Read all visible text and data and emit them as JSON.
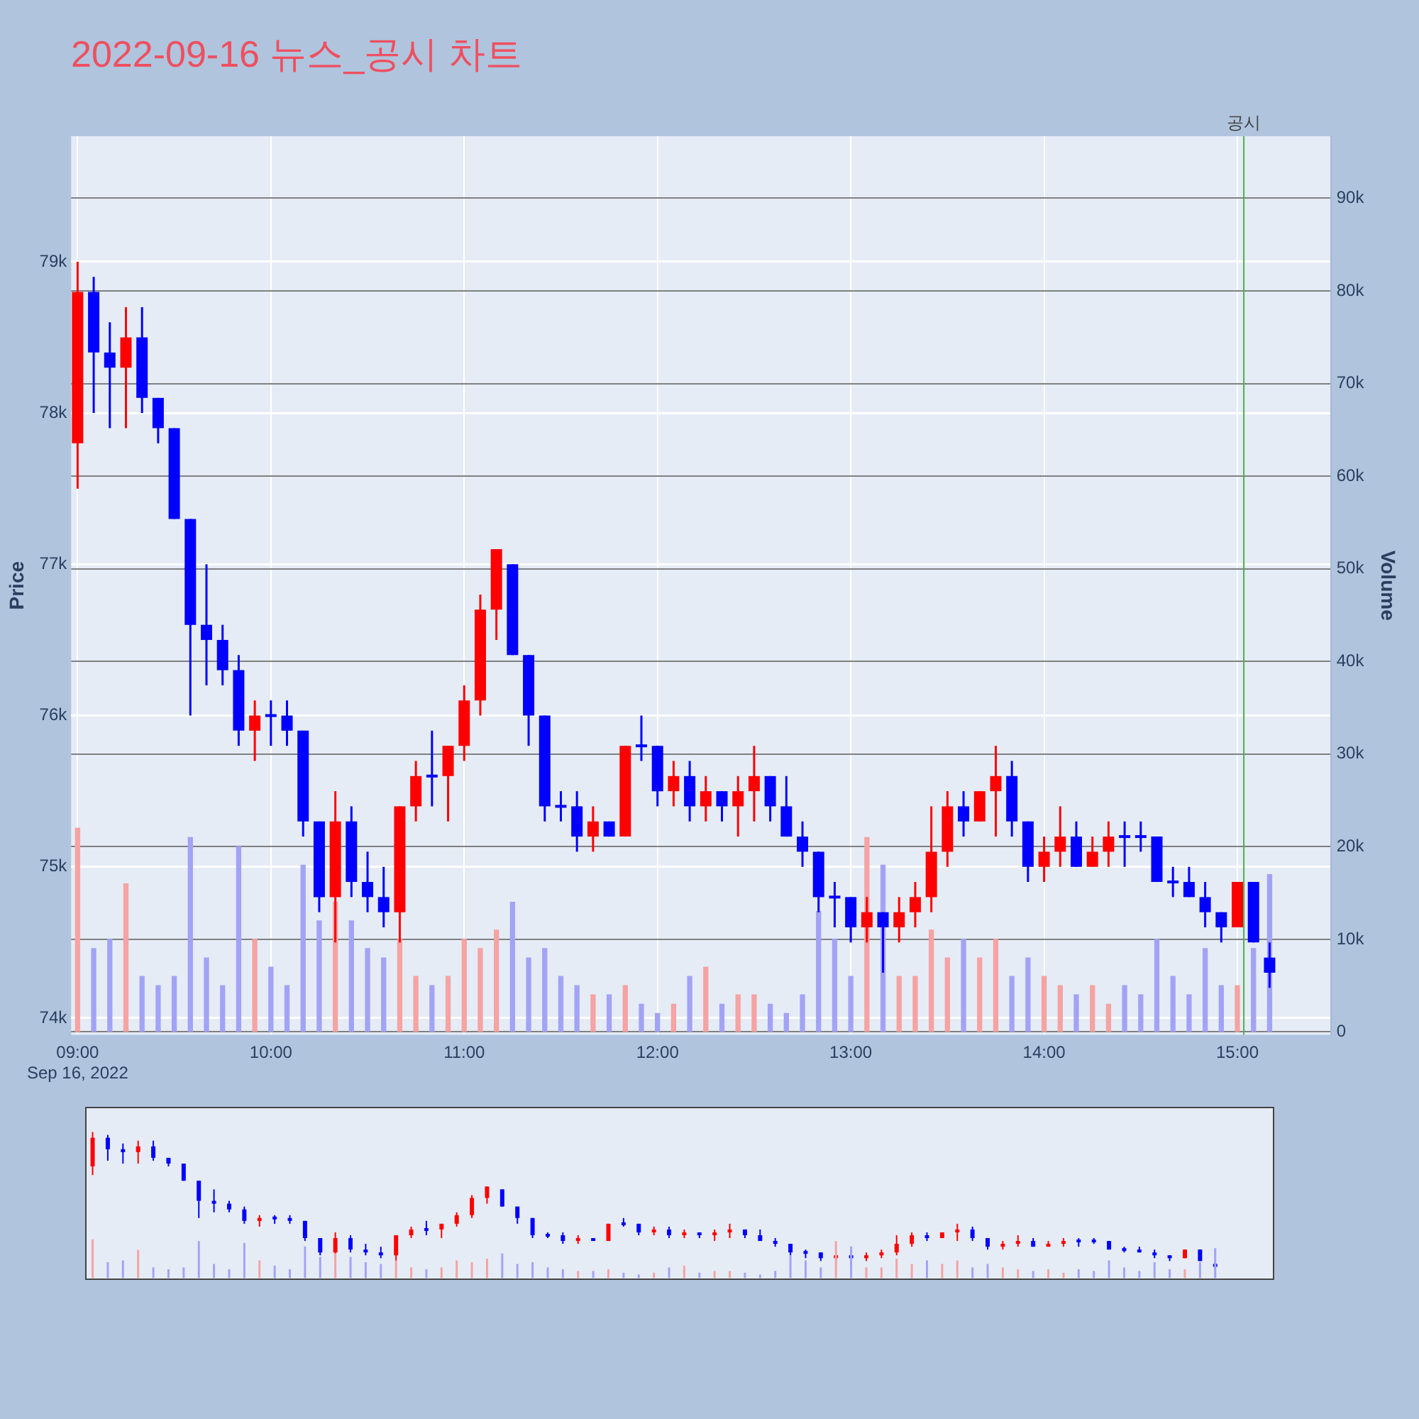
{
  "chart_data": {
    "type": "candlestick",
    "title": "2022-09-16 뉴스_공시 차트",
    "ylabel": "Price",
    "y2label": "Volume",
    "grid": true,
    "x": [
      "2022-09-16T09:00",
      "2022-09-16T09:05",
      "2022-09-16T09:10",
      "2022-09-16T09:15",
      "2022-09-16T09:20",
      "2022-09-16T09:25",
      "2022-09-16T09:30",
      "2022-09-16T09:35",
      "2022-09-16T09:40",
      "2022-09-16T09:45",
      "2022-09-16T09:50",
      "2022-09-16T09:55",
      "2022-09-16T10:00",
      "2022-09-16T10:05",
      "2022-09-16T10:10",
      "2022-09-16T10:15",
      "2022-09-16T10:20",
      "2022-09-16T10:25",
      "2022-09-16T10:30",
      "2022-09-16T10:35",
      "2022-09-16T10:40",
      "2022-09-16T10:45",
      "2022-09-16T10:50",
      "2022-09-16T10:55",
      "2022-09-16T11:00",
      "2022-09-16T11:05",
      "2022-09-16T11:10",
      "2022-09-16T11:15",
      "2022-09-16T11:20",
      "2022-09-16T11:25",
      "2022-09-16T11:30",
      "2022-09-16T11:35",
      "2022-09-16T11:40",
      "2022-09-16T11:45",
      "2022-09-16T11:50",
      "2022-09-16T11:55",
      "2022-09-16T12:00",
      "2022-09-16T12:05",
      "2022-09-16T12:10",
      "2022-09-16T12:15",
      "2022-09-16T12:20",
      "2022-09-16T12:25",
      "2022-09-16T12:30",
      "2022-09-16T12:35",
      "2022-09-16T12:40",
      "2022-09-16T12:45",
      "2022-09-16T12:50",
      "2022-09-16T12:55",
      "2022-09-16T13:00",
      "2022-09-16T13:05",
      "2022-09-16T13:10",
      "2022-09-16T13:15",
      "2022-09-16T13:20",
      "2022-09-16T13:25",
      "2022-09-16T13:30",
      "2022-09-16T13:35",
      "2022-09-16T13:40",
      "2022-09-16T13:45",
      "2022-09-16T13:50",
      "2022-09-16T13:55",
      "2022-09-16T14:00",
      "2022-09-16T14:05",
      "2022-09-16T14:10",
      "2022-09-16T14:15",
      "2022-09-16T14:20",
      "2022-09-16T14:25",
      "2022-09-16T14:30",
      "2022-09-16T14:35",
      "2022-09-16T14:40",
      "2022-09-16T14:45",
      "2022-09-16T14:50",
      "2022-09-16T14:55",
      "2022-09-16T15:00",
      "2022-09-16T15:05",
      "2022-09-16T15:10"
    ],
    "series": [
      {
        "type": "candlestick",
        "ohlc": [
          [
            77800,
            79000,
            77500,
            78800
          ],
          [
            78800,
            78900,
            78000,
            78400
          ],
          [
            78400,
            78600,
            77900,
            78300
          ],
          [
            78300,
            78700,
            77900,
            78500
          ],
          [
            78500,
            78700,
            78000,
            78100
          ],
          [
            78100,
            78100,
            77800,
            77900
          ],
          [
            77900,
            77900,
            77300,
            77300
          ],
          [
            77300,
            77300,
            76000,
            76600
          ],
          [
            76600,
            77000,
            76200,
            76500
          ],
          [
            76500,
            76600,
            76200,
            76300
          ],
          [
            76300,
            76400,
            75800,
            75900
          ],
          [
            75900,
            76100,
            75700,
            76000
          ],
          [
            76000,
            76100,
            75800,
            76000
          ],
          [
            76000,
            76100,
            75800,
            75900
          ],
          [
            75900,
            75900,
            75200,
            75300
          ],
          [
            75300,
            75300,
            74700,
            74800
          ],
          [
            74800,
            75500,
            74500,
            75300
          ],
          [
            75300,
            75400,
            74800,
            74900
          ],
          [
            74900,
            75100,
            74700,
            74800
          ],
          [
            74800,
            75000,
            74600,
            74700
          ],
          [
            74700,
            75400,
            74500,
            75400
          ],
          [
            75400,
            75700,
            75300,
            75600
          ],
          [
            75600,
            75900,
            75400,
            75600
          ],
          [
            75600,
            75800,
            75300,
            75800
          ],
          [
            75800,
            76200,
            75700,
            76100
          ],
          [
            76100,
            76800,
            76000,
            76700
          ],
          [
            76700,
            77100,
            76500,
            77100
          ],
          [
            77000,
            77000,
            76400,
            76400
          ],
          [
            76400,
            76400,
            75800,
            76000
          ],
          [
            76000,
            76000,
            75300,
            75400
          ],
          [
            75400,
            75500,
            75300,
            75400
          ],
          [
            75400,
            75500,
            75100,
            75200
          ],
          [
            75200,
            75400,
            75100,
            75300
          ],
          [
            75300,
            75300,
            75200,
            75200
          ],
          [
            75200,
            75800,
            75200,
            75800
          ],
          [
            75800,
            76000,
            75700,
            75800
          ],
          [
            75800,
            75800,
            75400,
            75500
          ],
          [
            75500,
            75700,
            75400,
            75600
          ],
          [
            75600,
            75700,
            75300,
            75400
          ],
          [
            75400,
            75600,
            75300,
            75500
          ],
          [
            75500,
            75500,
            75300,
            75400
          ],
          [
            75400,
            75600,
            75200,
            75500
          ],
          [
            75500,
            75800,
            75300,
            75600
          ],
          [
            75600,
            75600,
            75300,
            75400
          ],
          [
            75400,
            75600,
            75200,
            75200
          ],
          [
            75200,
            75300,
            75000,
            75100
          ],
          [
            75100,
            75100,
            74700,
            74800
          ],
          [
            74800,
            74900,
            74600,
            74800
          ],
          [
            74800,
            74800,
            74500,
            74600
          ],
          [
            74600,
            74800,
            74500,
            74700
          ],
          [
            74700,
            74700,
            74300,
            74600
          ],
          [
            74600,
            74800,
            74500,
            74700
          ],
          [
            74700,
            74900,
            74600,
            74800
          ],
          [
            74800,
            75400,
            74700,
            75100
          ],
          [
            75100,
            75500,
            75000,
            75400
          ],
          [
            75400,
            75500,
            75200,
            75300
          ],
          [
            75300,
            75500,
            75300,
            75500
          ],
          [
            75500,
            75800,
            75200,
            75600
          ],
          [
            75600,
            75700,
            75200,
            75300
          ],
          [
            75300,
            75300,
            74900,
            75000
          ],
          [
            75000,
            75200,
            74900,
            75100
          ],
          [
            75100,
            75400,
            75000,
            75200
          ],
          [
            75200,
            75300,
            75000,
            75000
          ],
          [
            75000,
            75200,
            75000,
            75100
          ],
          [
            75100,
            75300,
            75000,
            75200
          ],
          [
            75200,
            75300,
            75000,
            75200
          ],
          [
            75200,
            75300,
            75100,
            75200
          ],
          [
            75200,
            75200,
            74900,
            74900
          ],
          [
            74900,
            75000,
            74800,
            74900
          ],
          [
            74900,
            75000,
            74800,
            74800
          ],
          [
            74800,
            74900,
            74600,
            74700
          ],
          [
            74700,
            74700,
            74500,
            74600
          ],
          [
            74600,
            74900,
            74600,
            74900
          ],
          [
            74900,
            74900,
            74500,
            74500
          ],
          [
            74400,
            74500,
            74200,
            74300
          ]
        ],
        "colors": [
          "#ff0000",
          "#0000ff",
          "#0000ff",
          "#ff0000",
          "#0000ff",
          "#0000ff",
          "#0000ff",
          "#0000ff",
          "#0000ff",
          "#0000ff",
          "#0000ff",
          "#ff0000",
          "#0000ff",
          "#0000ff",
          "#0000ff",
          "#0000ff",
          "#ff0000",
          "#0000ff",
          "#0000ff",
          "#0000ff",
          "#ff0000",
          "#ff0000",
          "#0000ff",
          "#ff0000",
          "#ff0000",
          "#ff0000",
          "#ff0000",
          "#0000ff",
          "#0000ff",
          "#0000ff",
          "#0000ff",
          "#0000ff",
          "#ff0000",
          "#0000ff",
          "#ff0000",
          "#0000ff",
          "#0000ff",
          "#ff0000",
          "#0000ff",
          "#ff0000",
          "#0000ff",
          "#ff0000",
          "#ff0000",
          "#0000ff",
          "#0000ff",
          "#0000ff",
          "#0000ff",
          "#0000ff",
          "#0000ff",
          "#ff0000",
          "#0000ff",
          "#ff0000",
          "#ff0000",
          "#ff0000",
          "#ff0000",
          "#0000ff",
          "#ff0000",
          "#ff0000",
          "#0000ff",
          "#0000ff",
          "#ff0000",
          "#ff0000",
          "#0000ff",
          "#ff0000",
          "#ff0000",
          "#0000ff",
          "#0000ff",
          "#0000ff",
          "#0000ff",
          "#0000ff",
          "#0000ff",
          "#0000ff",
          "#ff0000",
          "#0000ff",
          "#0000ff"
        ]
      },
      {
        "type": "bar",
        "axis": "y2",
        "values": [
          22000,
          9000,
          10000,
          16000,
          6000,
          5000,
          6000,
          21000,
          8000,
          5000,
          20000,
          10000,
          7000,
          5000,
          18000,
          12000,
          14000,
          12000,
          9000,
          8000,
          10000,
          6000,
          5000,
          6000,
          10000,
          9000,
          11000,
          14000,
          8000,
          9000,
          6000,
          5000,
          4000,
          4000,
          5000,
          3000,
          2000,
          3000,
          6000,
          7000,
          3000,
          4000,
          4000,
          3000,
          2000,
          4000,
          13000,
          10000,
          6000,
          21000,
          18000,
          6000,
          6000,
          11000,
          8000,
          10000,
          8000,
          10000,
          6000,
          8000,
          6000,
          5000,
          4000,
          5000,
          3000,
          5000,
          4000,
          10000,
          6000,
          4000,
          9000,
          5000,
          5000,
          9000,
          17000
        ],
        "colors": [
          "#f5a3a3",
          "#a3a3f5",
          "#a3a3f5",
          "#f5a3a3",
          "#a3a3f5",
          "#a3a3f5",
          "#a3a3f5",
          "#a3a3f5",
          "#a3a3f5",
          "#a3a3f5",
          "#a3a3f5",
          "#f5a3a3",
          "#a3a3f5",
          "#a3a3f5",
          "#a3a3f5",
          "#a3a3f5",
          "#f5a3a3",
          "#a3a3f5",
          "#a3a3f5",
          "#a3a3f5",
          "#f5a3a3",
          "#f5a3a3",
          "#a3a3f5",
          "#f5a3a3",
          "#f5a3a3",
          "#f5a3a3",
          "#f5a3a3",
          "#a3a3f5",
          "#a3a3f5",
          "#a3a3f5",
          "#a3a3f5",
          "#a3a3f5",
          "#f5a3a3",
          "#a3a3f5",
          "#f5a3a3",
          "#a3a3f5",
          "#a3a3f5",
          "#f5a3a3",
          "#a3a3f5",
          "#f5a3a3",
          "#a3a3f5",
          "#f5a3a3",
          "#f5a3a3",
          "#a3a3f5",
          "#a3a3f5",
          "#a3a3f5",
          "#a3a3f5",
          "#a3a3f5",
          "#a3a3f5",
          "#f5a3a3",
          "#a3a3f5",
          "#f5a3a3",
          "#f5a3a3",
          "#f5a3a3",
          "#f5a3a3",
          "#a3a3f5",
          "#f5a3a3",
          "#f5a3a3",
          "#a3a3f5",
          "#a3a3f5",
          "#f5a3a3",
          "#f5a3a3",
          "#a3a3f5",
          "#f5a3a3",
          "#f5a3a3",
          "#a3a3f5",
          "#a3a3f5",
          "#a3a3f5",
          "#a3a3f5",
          "#a3a3f5",
          "#a3a3f5",
          "#a3a3f5",
          "#f5a3a3",
          "#a3a3f5",
          "#a3a3f5"
        ]
      }
    ],
    "xlim": [
      "2022-09-16T08:58",
      "2022-09-16T15:29"
    ],
    "xticks": [
      {
        "value": "2022-09-16T09:00",
        "label": "09:00\nSep 16, 2022"
      },
      {
        "value": "2022-09-16T10:00",
        "label": "10:00"
      },
      {
        "value": "2022-09-16T11:00",
        "label": "11:00"
      },
      {
        "value": "2022-09-16T12:00",
        "label": "12:00"
      },
      {
        "value": "2022-09-16T13:00",
        "label": "13:00"
      },
      {
        "value": "2022-09-16T14:00",
        "label": "14:00"
      },
      {
        "value": "2022-09-16T15:00",
        "label": "15:00"
      }
    ],
    "ylim": [
      73890,
      79830
    ],
    "yticks": [
      {
        "value": 74000,
        "label": "74k"
      },
      {
        "value": 75000,
        "label": "75k"
      },
      {
        "value": 76000,
        "label": "76k"
      },
      {
        "value": 77000,
        "label": "77k"
      },
      {
        "value": 78000,
        "label": "78k"
      },
      {
        "value": 79000,
        "label": "79k"
      }
    ],
    "y2lim": [
      -300,
      96700
    ],
    "y2ticks": [
      0,
      {
        "value": 10000,
        "label": "10k"
      },
      {
        "value": 20000,
        "label": "20k"
      },
      {
        "value": 30000,
        "label": "30k"
      },
      {
        "value": 40000,
        "label": "40k"
      },
      {
        "value": 50000,
        "label": "50k"
      },
      {
        "value": 60000,
        "label": "60k"
      },
      {
        "value": 70000,
        "label": "70k"
      },
      {
        "value": 80000,
        "label": "80k"
      },
      {
        "value": 90000,
        "label": "90k"
      }
    ],
    "ref_lines": [
      {
        "axis": "x",
        "value": "2022-09-16T15:02",
        "label": "공시",
        "color": "#4caf50"
      }
    ]
  }
}
